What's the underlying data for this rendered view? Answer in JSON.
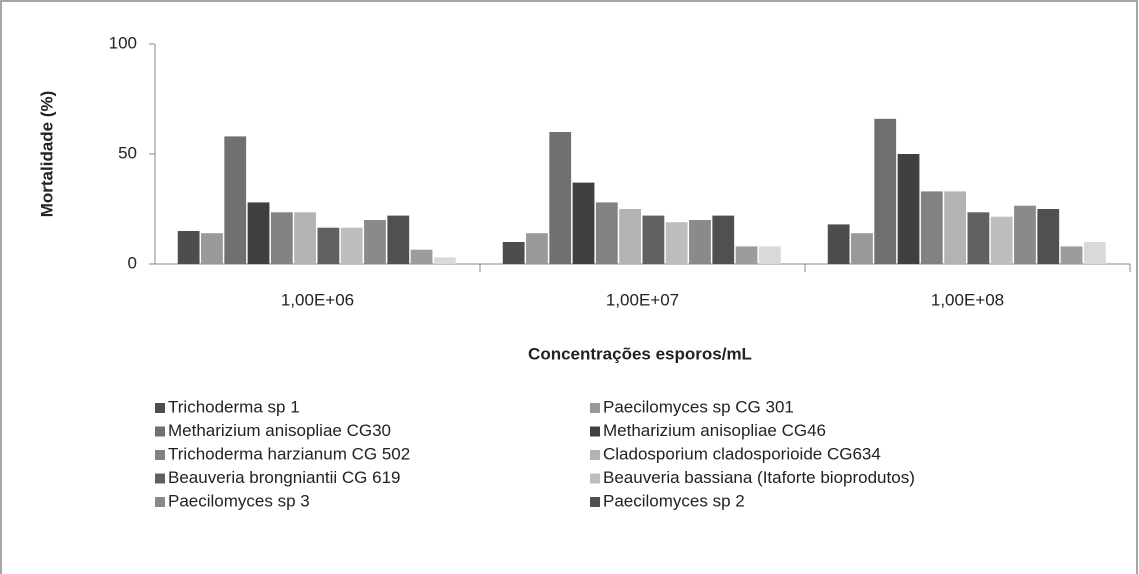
{
  "chart_data": {
    "type": "bar",
    "x_label": "Concentrações esporos/mL",
    "y_label": "Mortalidade (%)",
    "categories": [
      "1,00E+06",
      "1,00E+07",
      "1,00E+08"
    ],
    "ylim": [
      0,
      100
    ],
    "yticks": [
      0,
      50,
      100
    ],
    "grid": false,
    "series": [
      {
        "name": "Trichoderma sp 1",
        "color": "#4d4d4d",
        "values": [
          15,
          10,
          18
        ]
      },
      {
        "name": "Paecilomyces sp CG 301",
        "color": "#999999",
        "values": [
          14,
          14,
          14
        ]
      },
      {
        "name": "Metharizium anisopliae CG30",
        "color": "#707070",
        "values": [
          58,
          60,
          66
        ]
      },
      {
        "name": "Metharizium anisopliae CG46",
        "color": "#404040",
        "values": [
          28,
          37,
          50
        ]
      },
      {
        "name": "Trichoderma harzianum CG 502",
        "color": "#828282",
        "values": [
          23.5,
          28,
          33
        ]
      },
      {
        "name": "Cladosporium cladosporioide CG634",
        "color": "#b3b3b3",
        "values": [
          23.5,
          25,
          33
        ]
      },
      {
        "name": "Beauveria brongniantii CG 619",
        "color": "#606060",
        "values": [
          16.5,
          22,
          23.5
        ]
      },
      {
        "name": "Beauveria bassiana (Itaforte bioprodutos)",
        "color": "#bdbdbd",
        "values": [
          16.5,
          19,
          21.5
        ]
      },
      {
        "name": "Paecilomyces sp 3",
        "color": "#8a8a8a",
        "values": [
          20,
          20,
          26.5
        ]
      },
      {
        "name": "Paecilomyces sp 2",
        "color": "#505050",
        "values": [
          22,
          22,
          25
        ]
      },
      {
        "color": "#9c9c9c",
        "values": [
          6.5,
          8,
          8
        ]
      },
      {
        "color": "#d9d9d9",
        "values": [
          3,
          8,
          10
        ]
      }
    ]
  }
}
